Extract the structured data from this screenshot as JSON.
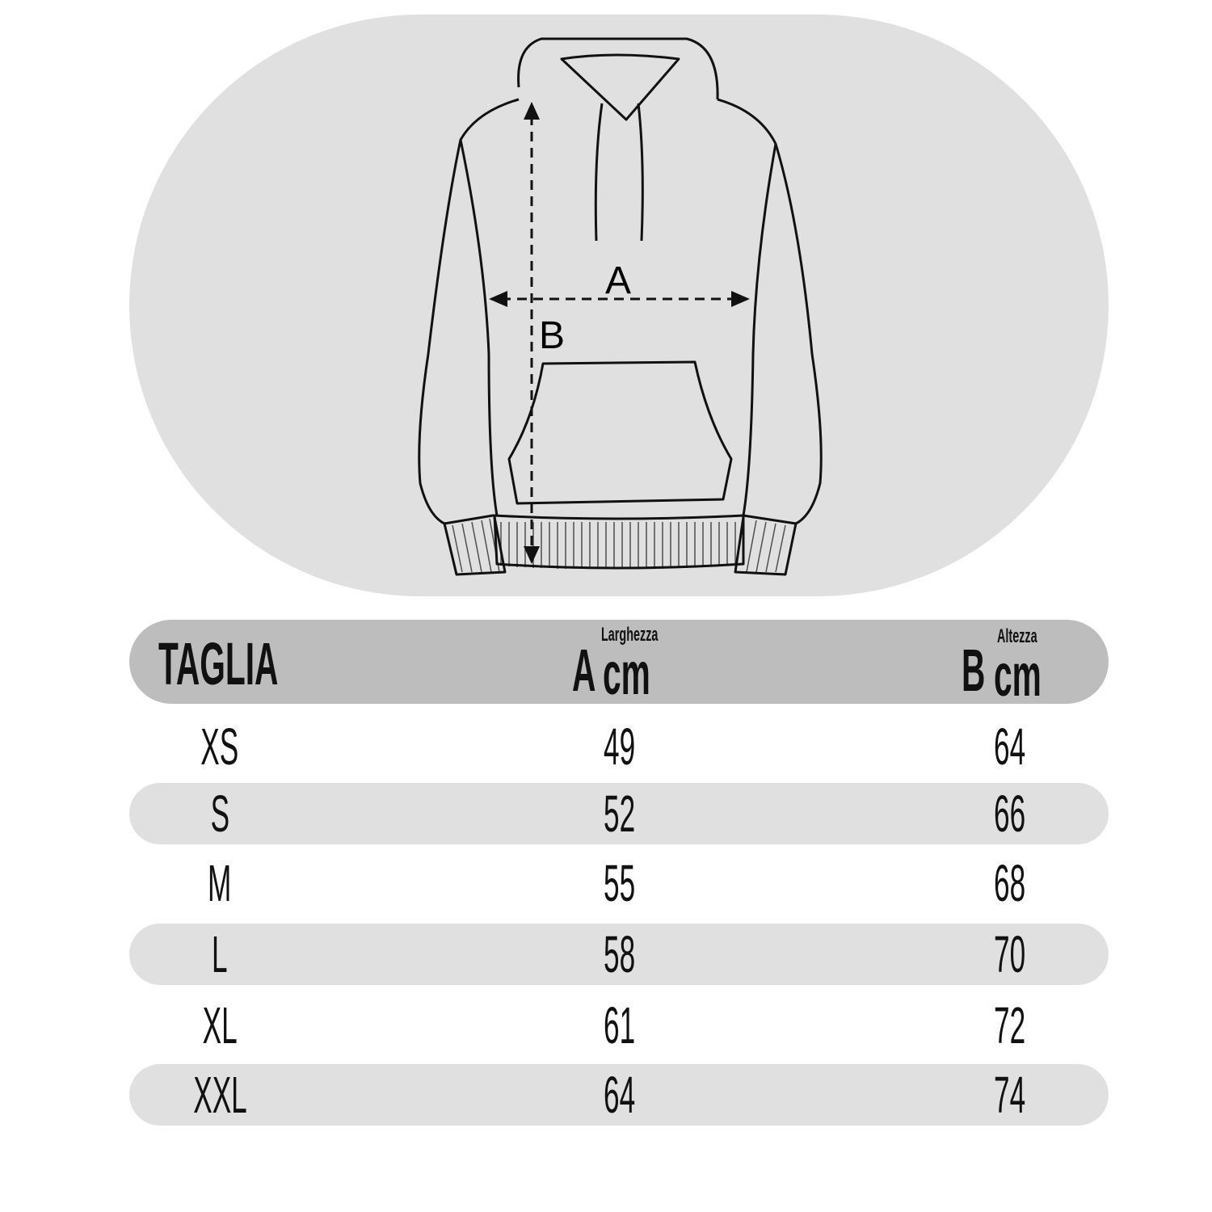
{
  "diagram": {
    "labels": {
      "width_marker": "A",
      "height_marker": "B"
    }
  },
  "table": {
    "header": {
      "size": "TAGLIA",
      "a_letter": "A",
      "a_unit": "cm",
      "a_label": "Larghezza",
      "b_letter": "B",
      "b_unit": "cm",
      "b_label": "Altezza"
    },
    "rows": [
      {
        "size": "XS",
        "a": "49",
        "b": "64"
      },
      {
        "size": "S",
        "a": "52",
        "b": "66"
      },
      {
        "size": "M",
        "a": "55",
        "b": "68"
      },
      {
        "size": "L",
        "a": "58",
        "b": "70"
      },
      {
        "size": "XL",
        "a": "61",
        "b": "72"
      },
      {
        "size": "XXL",
        "a": "64",
        "b": "74"
      }
    ]
  },
  "colors": {
    "header_bg": "#bdbdbd",
    "stripe_bg": "#e0e0e0",
    "text": "#111111"
  }
}
